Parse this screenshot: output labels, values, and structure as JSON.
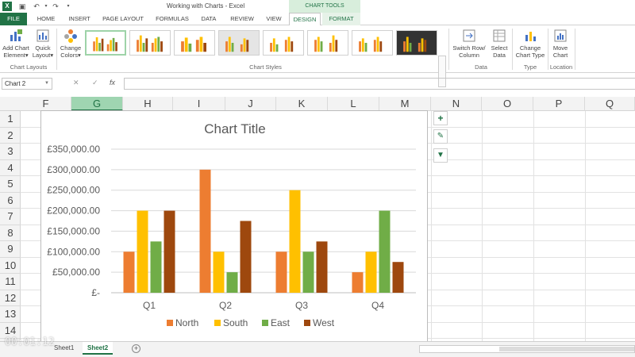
{
  "window": {
    "title": "Working with Charts - Excel",
    "app_icon": "X",
    "contextual_title": "CHART TOOLS"
  },
  "tabs": [
    "FILE",
    "HOME",
    "INSERT",
    "PAGE LAYOUT",
    "FORMULAS",
    "DATA",
    "REVIEW",
    "VIEW",
    "DESIGN",
    "FORMAT"
  ],
  "active_tab": "DESIGN",
  "ribbon": {
    "add_chart_element": "Add Chart Element",
    "add_chart_element_l1": "Add Chart",
    "add_chart_element_l2": "Element",
    "quick_layout_l1": "Quick",
    "quick_layout_l2": "Layout",
    "change_colors_l1": "Change",
    "change_colors_l2": "Colors",
    "group_chart_layouts": "Chart Layouts",
    "group_chart_styles": "Chart Styles",
    "switch_row_col_l1": "Switch Row/",
    "switch_row_col_l2": "Column",
    "select_data_l1": "Select",
    "select_data_l2": "Data",
    "group_data": "Data",
    "change_chart_type_l1": "Change",
    "change_chart_type_l2": "Chart Type",
    "group_type": "Type",
    "move_chart_l1": "Move",
    "move_chart_l2": "Chart",
    "group_location": "Location"
  },
  "formula_bar": {
    "name_box": "Chart 2",
    "fx": "fx",
    "cancel": "✕",
    "enter": "✓",
    "value": ""
  },
  "columns": [
    "F",
    "G",
    "H",
    "I",
    "J",
    "K",
    "L",
    "M",
    "N",
    "O",
    "P",
    "Q"
  ],
  "selected_column": "G",
  "rows": [
    "1",
    "2",
    "3",
    "4",
    "5",
    "6",
    "7",
    "8",
    "9",
    "10",
    "11",
    "12",
    "13",
    "14"
  ],
  "sheets": [
    "Sheet1",
    "Sheet2"
  ],
  "active_sheet": "Sheet2",
  "timecode": "00:01:12",
  "colors": {
    "excel_green": "#217346",
    "north": "#ed7d31",
    "south": "#ffc000",
    "east": "#70ad47",
    "west": "#9e480e"
  },
  "chart_data": {
    "type": "bar",
    "title": "Chart Title",
    "categories": [
      "Q1",
      "Q2",
      "Q3",
      "Q4"
    ],
    "series": [
      {
        "name": "North",
        "color": "#ed7d31",
        "values": [
          100000,
          300000,
          100000,
          50000
        ]
      },
      {
        "name": "South",
        "color": "#ffc000",
        "values": [
          200000,
          100000,
          250000,
          100000
        ]
      },
      {
        "name": "East",
        "color": "#70ad47",
        "values": [
          125000,
          50000,
          100000,
          200000
        ]
      },
      {
        "name": "West",
        "color": "#9e480e",
        "values": [
          200000,
          175000,
          125000,
          75000
        ]
      }
    ],
    "ylim": [
      0,
      350000
    ],
    "yticks": [
      "£-",
      "£50,000.00",
      "£100,000.00",
      "£150,000.00",
      "£200,000.00",
      "£250,000.00",
      "£300,000.00",
      "£350,000.00"
    ],
    "grid": true,
    "legend": "bottom"
  }
}
